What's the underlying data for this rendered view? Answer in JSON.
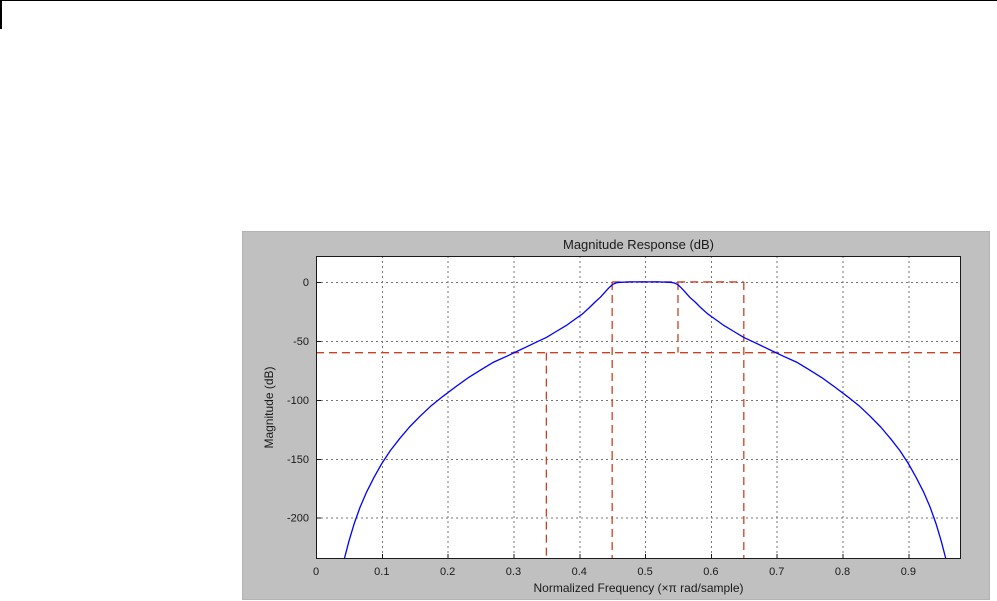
{
  "figure": {
    "panel_bg": "#c0c0c0"
  },
  "chart_data": {
    "type": "line",
    "title": "Magnitude Response (dB)",
    "xlabel": "Normalized Frequency (×π rad/sample)",
    "ylabel": "Magnitude (dB)",
    "xlim": [
      0,
      0.98
    ],
    "ylim": [
      -235,
      22
    ],
    "grid": true,
    "grid_style": "dotted",
    "xticks": {
      "values": [
        0,
        0.1,
        0.2,
        0.3,
        0.4,
        0.5,
        0.6,
        0.7,
        0.8,
        0.9
      ],
      "labels": [
        "0",
        "0.1",
        "0.2",
        "0.3",
        "0.4",
        "0.5",
        "0.6",
        "0.7",
        "0.8",
        "0.9"
      ]
    },
    "yticks": {
      "values": [
        0,
        -50,
        -100,
        -150,
        -200
      ],
      "labels": [
        "0",
        "-50",
        "-100",
        "-150",
        "-200"
      ]
    },
    "series": [
      {
        "name": "magnitude-response",
        "color": "#0000ff",
        "line_style": "solid",
        "points": [
          [
            0.043,
            -235
          ],
          [
            0.05,
            -220
          ],
          [
            0.058,
            -205
          ],
          [
            0.067,
            -191
          ],
          [
            0.077,
            -178
          ],
          [
            0.088,
            -166
          ],
          [
            0.1,
            -154
          ],
          [
            0.113,
            -143
          ],
          [
            0.127,
            -133
          ],
          [
            0.142,
            -123
          ],
          [
            0.158,
            -114
          ],
          [
            0.175,
            -105
          ],
          [
            0.193,
            -97
          ],
          [
            0.212,
            -89
          ],
          [
            0.232,
            -81
          ],
          [
            0.252,
            -74
          ],
          [
            0.27,
            -68
          ],
          [
            0.29,
            -63
          ],
          [
            0.305,
            -59
          ],
          [
            0.32,
            -55
          ],
          [
            0.335,
            -51
          ],
          [
            0.35,
            -47
          ],
          [
            0.365,
            -42
          ],
          [
            0.38,
            -37
          ],
          [
            0.395,
            -31
          ],
          [
            0.405,
            -27
          ],
          [
            0.415,
            -22
          ],
          [
            0.424,
            -17
          ],
          [
            0.432,
            -13
          ],
          [
            0.44,
            -8
          ],
          [
            0.446,
            -4.5
          ],
          [
            0.451,
            -2
          ],
          [
            0.456,
            -0.8
          ],
          [
            0.462,
            -0.3
          ],
          [
            0.47,
            -0.1
          ],
          [
            0.48,
            0
          ],
          [
            0.5,
            0
          ],
          [
            0.52,
            0
          ],
          [
            0.53,
            -0.1
          ],
          [
            0.538,
            -0.3
          ],
          [
            0.544,
            -0.8
          ],
          [
            0.549,
            -2
          ],
          [
            0.554,
            -4.5
          ],
          [
            0.56,
            -8
          ],
          [
            0.568,
            -13
          ],
          [
            0.576,
            -17
          ],
          [
            0.585,
            -22
          ],
          [
            0.595,
            -27
          ],
          [
            0.605,
            -31
          ],
          [
            0.62,
            -37
          ],
          [
            0.635,
            -42
          ],
          [
            0.65,
            -47
          ],
          [
            0.665,
            -51
          ],
          [
            0.68,
            -55
          ],
          [
            0.695,
            -59
          ],
          [
            0.71,
            -63
          ],
          [
            0.73,
            -68
          ],
          [
            0.748,
            -74
          ],
          [
            0.768,
            -81
          ],
          [
            0.788,
            -89
          ],
          [
            0.807,
            -97
          ],
          [
            0.825,
            -105
          ],
          [
            0.842,
            -114
          ],
          [
            0.858,
            -123
          ],
          [
            0.873,
            -133
          ],
          [
            0.887,
            -143
          ],
          [
            0.9,
            -154
          ],
          [
            0.912,
            -166
          ],
          [
            0.923,
            -178
          ],
          [
            0.933,
            -191
          ],
          [
            0.942,
            -205
          ],
          [
            0.95,
            -220
          ],
          [
            0.957,
            -235
          ]
        ]
      }
    ],
    "spec_mask": {
      "name": "design-specification-mask",
      "color": "#cc4125",
      "line_style": "dashed",
      "segments": [
        [
          0.0,
          -60,
          0.98,
          -60
        ],
        [
          0.45,
          0,
          0.65,
          0
        ],
        [
          0.35,
          -60,
          0.35,
          -235
        ],
        [
          0.45,
          0,
          0.45,
          -235
        ],
        [
          0.55,
          0,
          0.55,
          -60
        ],
        [
          0.65,
          0,
          0.65,
          -235
        ]
      ]
    }
  }
}
